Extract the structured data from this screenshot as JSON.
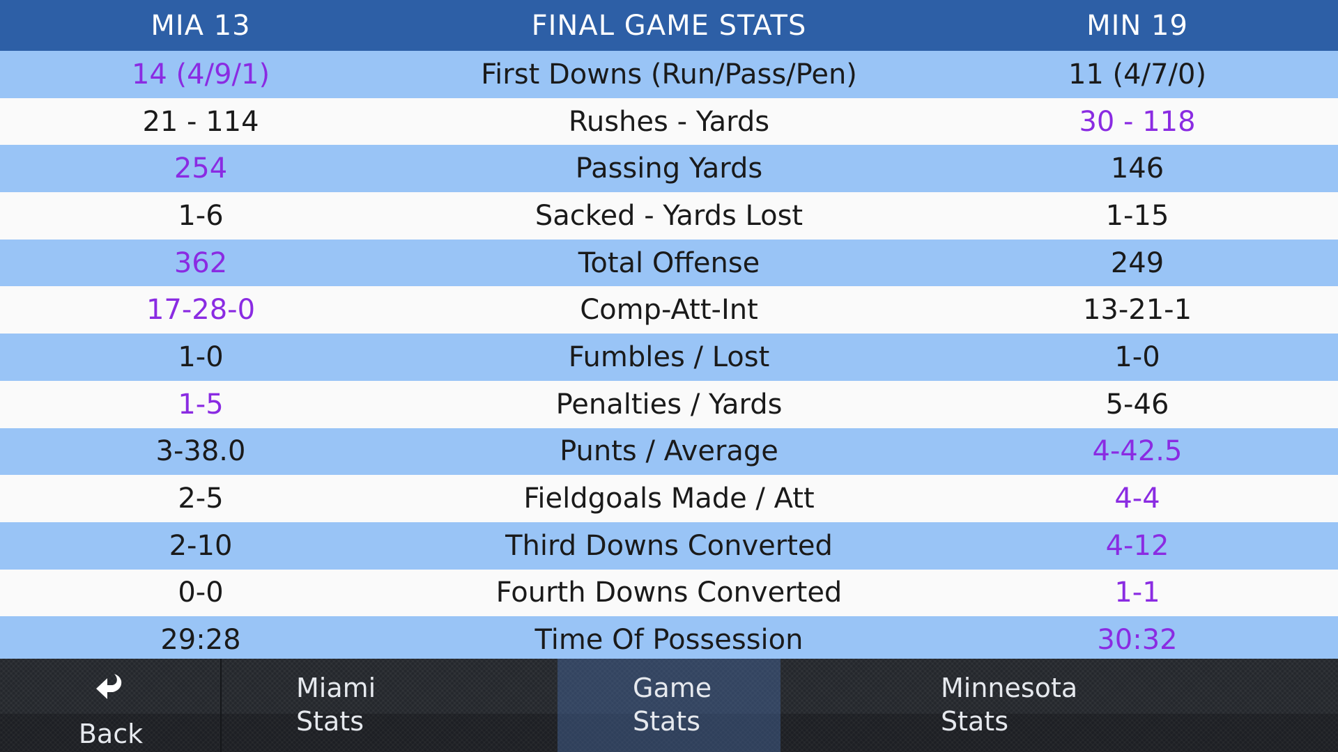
{
  "header": {
    "left_team": "MIA 13",
    "title": "FINAL GAME STATS",
    "right_team": "MIN 19"
  },
  "colors": {
    "header_bg": "#2d5fa6",
    "row_odd": "#99c4f6",
    "row_even": "#fafafa",
    "leader": "#8a2be2",
    "nav_bg": "#24272c"
  },
  "stats": [
    {
      "left": "14 (4/9/1)",
      "label": "First Downs (Run/Pass/Pen)",
      "right": "11 (4/7/0)",
      "leader": "left"
    },
    {
      "left": "21 - 114",
      "label": "Rushes - Yards",
      "right": "30 - 118",
      "leader": "right"
    },
    {
      "left": "254",
      "label": "Passing Yards",
      "right": "146",
      "leader": "left"
    },
    {
      "left": "1-6",
      "label": "Sacked - Yards Lost",
      "right": "1-15",
      "leader": "none"
    },
    {
      "left": "362",
      "label": "Total Offense",
      "right": "249",
      "leader": "left"
    },
    {
      "left": "17-28-0",
      "label": "Comp-Att-Int",
      "right": "13-21-1",
      "leader": "left"
    },
    {
      "left": "1-0",
      "label": "Fumbles / Lost",
      "right": "1-0",
      "leader": "none"
    },
    {
      "left": "1-5",
      "label": "Penalties / Yards",
      "right": "5-46",
      "leader": "left"
    },
    {
      "left": "3-38.0",
      "label": "Punts / Average",
      "right": "4-42.5",
      "leader": "right"
    },
    {
      "left": "2-5",
      "label": "Fieldgoals Made / Att",
      "right": "4-4",
      "leader": "right"
    },
    {
      "left": "2-10",
      "label": "Third Downs Converted",
      "right": "4-12",
      "leader": "right"
    },
    {
      "left": "0-0",
      "label": "Fourth Downs Converted",
      "right": "1-1",
      "leader": "right"
    },
    {
      "left": "29:28",
      "label": "Time Of Possession",
      "right": "30:32",
      "leader": "right"
    }
  ],
  "nav": {
    "back_icon": "back-arrow-icon",
    "back_label": "Back",
    "miami_label": "Miami\nStats",
    "game_label": "Game\nStats",
    "minnesota_label": "Minnesota\nStats",
    "active": "game"
  }
}
